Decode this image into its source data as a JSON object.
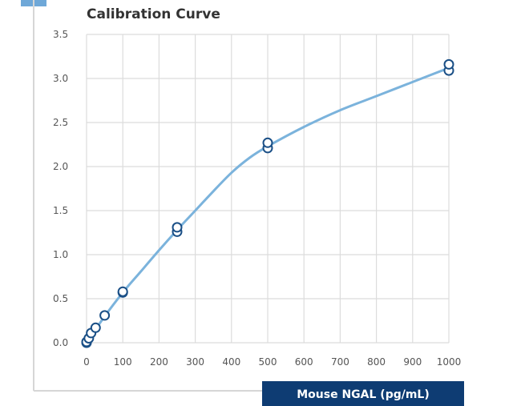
{
  "chart_data": {
    "type": "scatter",
    "title": "Calibration Curve",
    "xlabel": "Mouse NGAL (pg/mL)",
    "ylabel": "",
    "xlim": [
      0,
      1000
    ],
    "ylim": [
      0,
      3.5
    ],
    "x_ticks": [
      "0",
      "100",
      "200",
      "300",
      "400",
      "500",
      "600",
      "700",
      "800",
      "900",
      "1000"
    ],
    "y_ticks": [
      "0.0",
      "0.5",
      "1.0",
      "1.5",
      "2.0",
      "2.5",
      "3.0",
      "3.5"
    ],
    "grid": true,
    "series": [
      {
        "points": [
          {
            "x": 0,
            "y": 0.0
          },
          {
            "x": 0,
            "y": 0.01
          },
          {
            "x": 6.25,
            "y": 0.05
          },
          {
            "x": 12.5,
            "y": 0.11
          },
          {
            "x": 25,
            "y": 0.17
          },
          {
            "x": 50,
            "y": 0.31
          },
          {
            "x": 100,
            "y": 0.57
          },
          {
            "x": 100,
            "y": 0.58
          },
          {
            "x": 250,
            "y": 1.26
          },
          {
            "x": 250,
            "y": 1.31
          },
          {
            "x": 500,
            "y": 2.21
          },
          {
            "x": 500,
            "y": 2.27
          },
          {
            "x": 1000,
            "y": 3.09
          },
          {
            "x": 1000,
            "y": 3.16
          }
        ],
        "fit_curve": [
          {
            "x": 0,
            "y": 0.0
          },
          {
            "x": 50,
            "y": 0.3
          },
          {
            "x": 100,
            "y": 0.57
          },
          {
            "x": 150,
            "y": 0.81
          },
          {
            "x": 200,
            "y": 1.05
          },
          {
            "x": 250,
            "y": 1.28
          },
          {
            "x": 300,
            "y": 1.5
          },
          {
            "x": 350,
            "y": 1.72
          },
          {
            "x": 400,
            "y": 1.93
          },
          {
            "x": 450,
            "y": 2.1
          },
          {
            "x": 500,
            "y": 2.23
          },
          {
            "x": 600,
            "y": 2.45
          },
          {
            "x": 700,
            "y": 2.64
          },
          {
            "x": 800,
            "y": 2.8
          },
          {
            "x": 900,
            "y": 2.96
          },
          {
            "x": 1000,
            "y": 3.12
          }
        ]
      }
    ]
  },
  "colors": {
    "curve": "#7bb3dc",
    "marker": "#1a4f86",
    "grid": "#dcdcdc",
    "xlabel_box": "#0e3c73",
    "accent": "#6fa8d8"
  }
}
